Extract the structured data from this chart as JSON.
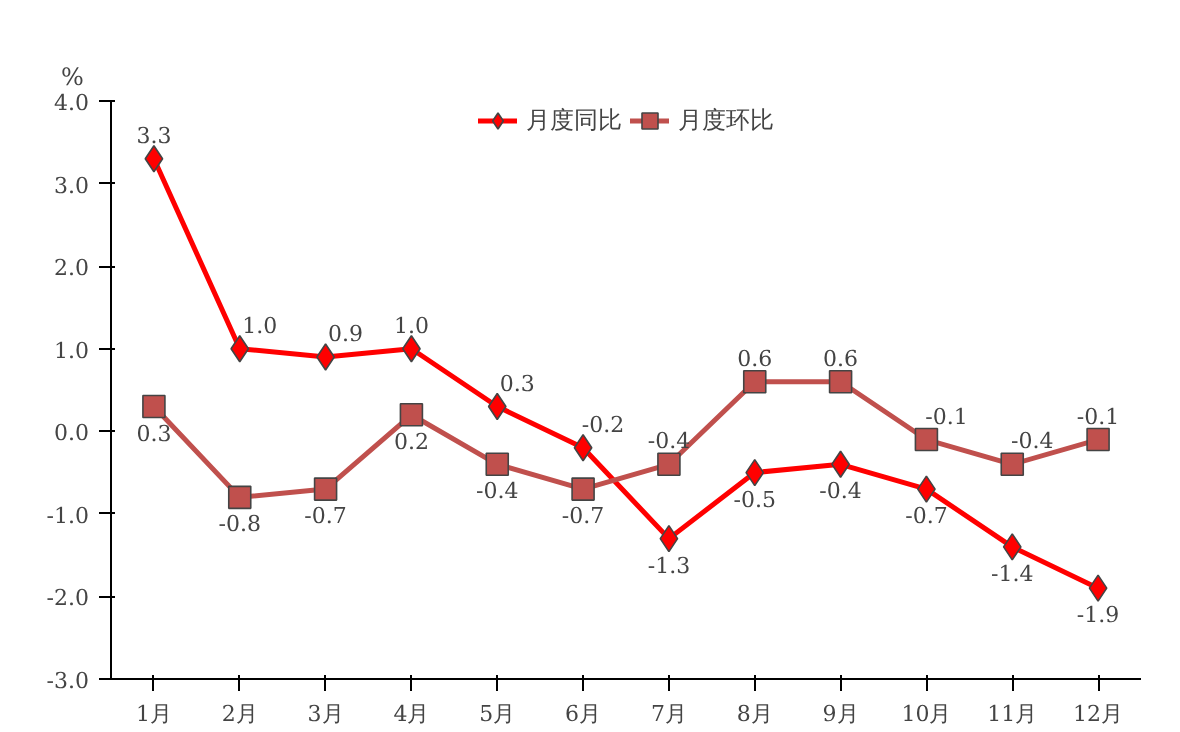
{
  "chart_data": {
    "type": "line",
    "ylabel": "%",
    "categories": [
      "1月",
      "2月",
      "3月",
      "4月",
      "5月",
      "6月",
      "7月",
      "8月",
      "9月",
      "10月",
      "11月",
      "12月"
    ],
    "series": [
      {
        "name": "月度同比",
        "color": "#ff0000",
        "marker": "diamond",
        "values": [
          3.3,
          1.0,
          0.9,
          1.0,
          0.3,
          -0.2,
          -1.3,
          -0.5,
          -0.4,
          -0.7,
          -1.4,
          -1.9
        ],
        "value_labels": [
          "3.3",
          "1.0",
          "0.9",
          "1.0",
          "0.3",
          "-0.2",
          "-1.3",
          "-0.5",
          "-0.4",
          "-0.7",
          "-1.4",
          "-1.9"
        ]
      },
      {
        "name": "月度环比",
        "color": "#c0504d",
        "marker": "square",
        "values": [
          0.3,
          -0.8,
          -0.7,
          0.2,
          -0.4,
          -0.7,
          -0.4,
          0.6,
          0.6,
          -0.1,
          -0.4,
          -0.1
        ],
        "value_labels": [
          "0.3",
          "-0.8",
          "-0.7",
          "0.2",
          "-0.4",
          "-0.7",
          "-0.4",
          "0.6",
          "0.6",
          "-0.1",
          "-0.4",
          "-0.1"
        ]
      }
    ],
    "ylim": [
      -3.0,
      4.0
    ],
    "yticks": [
      {
        "value": -3,
        "label": "-3.0"
      },
      {
        "value": -2,
        "label": "-2.0"
      },
      {
        "value": -1,
        "label": "-1.0"
      },
      {
        "value": 0,
        "label": "0.0"
      },
      {
        "value": 1,
        "label": "1.0"
      },
      {
        "value": 2,
        "label": "2.0"
      },
      {
        "value": 3,
        "label": "3.0"
      },
      {
        "value": 4,
        "label": "4.0"
      }
    ],
    "grid": false,
    "legend": "top"
  }
}
